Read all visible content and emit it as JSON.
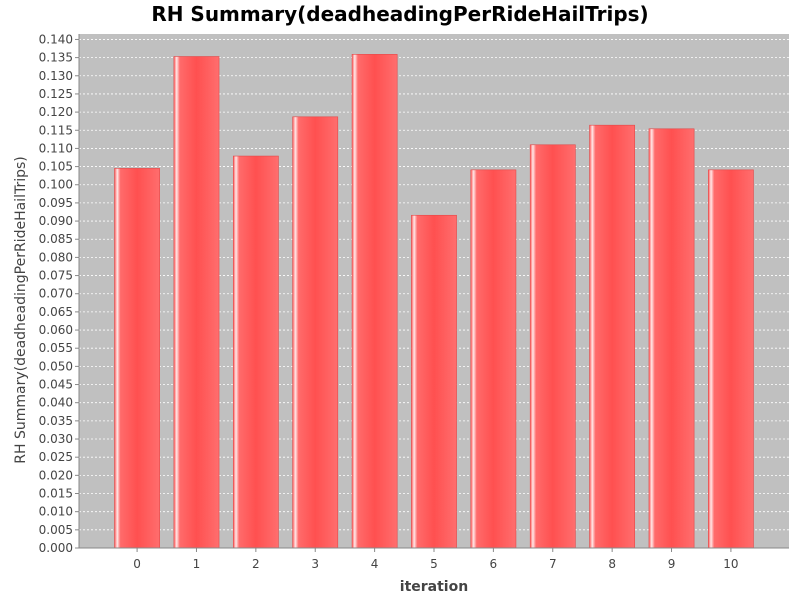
{
  "chart_data": {
    "type": "bar",
    "title": "RH Summary(deadheadingPerRideHailTrips)",
    "xlabel": "iteration",
    "ylabel": "RH Summary(deadheadingPerRideHailTrips)",
    "categories": [
      "0",
      "1",
      "2",
      "3",
      "4",
      "5",
      "6",
      "7",
      "8",
      "9",
      "10"
    ],
    "values": [
      0.1045,
      0.1353,
      0.1079,
      0.1187,
      0.1359,
      0.0916,
      0.1041,
      0.111,
      0.1164,
      0.1154,
      0.1041
    ],
    "ylim": [
      0,
      0.1415
    ],
    "ytick_step": 0.005,
    "grid": true,
    "legend": "none",
    "colors": {
      "plot_background": "#c0c0c0",
      "bar": "#ff5c5c",
      "bar_highlight": "#ffe6e6",
      "grid": "#ffffff"
    }
  }
}
